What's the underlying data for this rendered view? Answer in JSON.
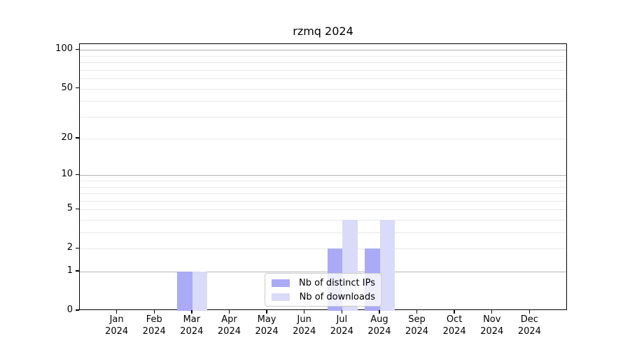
{
  "title": "rzmq 2024",
  "colors": {
    "ips": "#aaaaf6",
    "downloads": "#dadaf9",
    "grid_major": "#b3b3b3",
    "grid_minor": "#e8e8e8",
    "spine": "#000000",
    "legend_border": "#cccccc"
  },
  "legend": {
    "items": [
      {
        "key": "ips",
        "label": "Nb of distinct IPs"
      },
      {
        "key": "downloads",
        "label": "Nb of downloads"
      }
    ]
  },
  "chart_data": {
    "type": "bar",
    "title": "rzmq 2024",
    "scale": "log10(1+y)",
    "categories": [
      "Jan",
      "Feb",
      "Mar",
      "Apr",
      "May",
      "Jun",
      "Jul",
      "Aug",
      "Sep",
      "Oct",
      "Nov",
      "Dec"
    ],
    "year_label": "2024",
    "series": [
      {
        "name": "Nb of distinct IPs",
        "color_key": "ips",
        "values": [
          0,
          0,
          1,
          0,
          0,
          0,
          2,
          2,
          0,
          0,
          0,
          0
        ]
      },
      {
        "name": "Nb of downloads",
        "color_key": "downloads",
        "values": [
          0,
          0,
          1,
          0,
          0,
          0,
          4,
          4,
          0,
          0,
          0,
          0
        ]
      }
    ],
    "y_ticks": [
      0,
      1,
      2,
      5,
      10,
      20,
      50,
      100
    ],
    "ylim": [
      0,
      111
    ],
    "grid_major": [
      1,
      10,
      100
    ],
    "grid_minor": [
      2,
      3,
      4,
      5,
      6,
      7,
      8,
      9,
      20,
      30,
      40,
      50,
      60,
      70,
      80,
      90
    ],
    "legend_position": "lower center",
    "grid": true
  }
}
